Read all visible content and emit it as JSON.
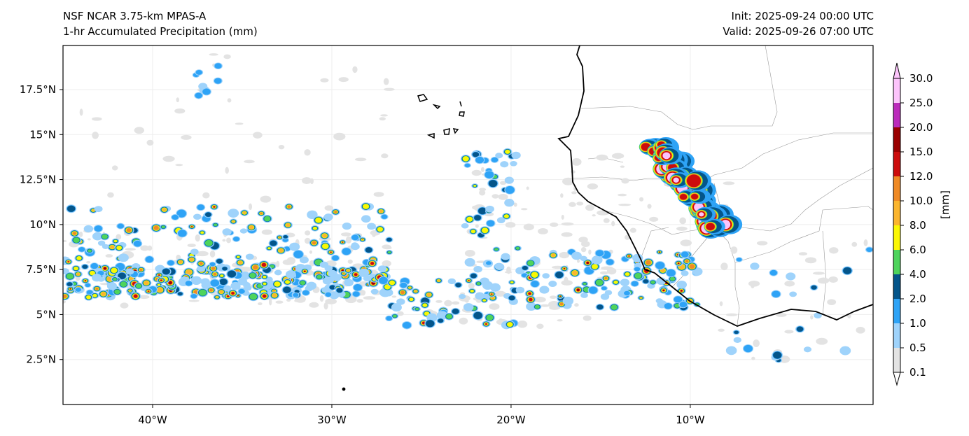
{
  "header": {
    "title_left_1": "NSF NCAR 3.75-km MPAS-A",
    "title_left_2": "1-hr Accumulated Precipitation (mm)",
    "title_right_1": "Init: 2025-09-24 00:00 UTC",
    "title_right_2": "Valid: 2025-09-26 07:00 UTC"
  },
  "map": {
    "lon_range": [
      -45,
      0.2
    ],
    "lat_range": [
      0,
      19.95
    ],
    "lat_ticks": [
      {
        "value": 17.5,
        "label": "17.5°N"
      },
      {
        "value": 15,
        "label": "15°N"
      },
      {
        "value": 12.5,
        "label": "12.5°N"
      },
      {
        "value": 10,
        "label": "10°N"
      },
      {
        "value": 7.5,
        "label": "7.5°N"
      },
      {
        "value": 5,
        "label": "5°N"
      },
      {
        "value": 2.5,
        "label": "2.5°N"
      }
    ],
    "lon_ticks": [
      {
        "value": -40,
        "label": "40°W"
      },
      {
        "value": -30,
        "label": "30°W"
      },
      {
        "value": -20,
        "label": "20°W"
      },
      {
        "value": -10,
        "label": "10°W"
      }
    ]
  },
  "colorbar": {
    "unit_label": "[mm]",
    "levels": [
      "0.1",
      "0.5",
      "1.0",
      "2.0",
      "4.0",
      "6.0",
      "8.0",
      "10.0",
      "12.0",
      "15.0",
      "20.0",
      "25.0",
      "30.0"
    ],
    "colors": [
      "#e3e3e3",
      "#9fd3fb",
      "#2ea3f6",
      "#04558a",
      "#4ed45c",
      "#fbf704",
      "#fbb52e",
      "#ef8a25",
      "#cc0c0c",
      "#9a0000",
      "#bb2bbb",
      "#fcc4fb"
    ]
  }
}
